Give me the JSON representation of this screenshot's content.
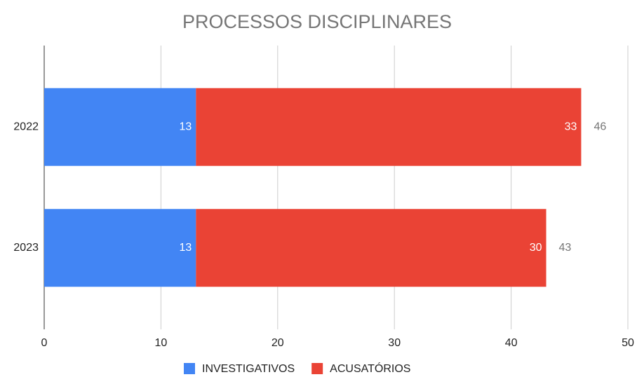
{
  "chart_data": {
    "type": "stacked_bar_horizontal",
    "title": "PROCESSOS DISCIPLINARES",
    "categories": [
      "2022",
      "2023"
    ],
    "series": [
      {
        "name": "INVESTIGATIVOS",
        "color": "#4285f4",
        "values": [
          13,
          13
        ]
      },
      {
        "name": "ACUSATÓRIOS",
        "color": "#ea4335",
        "values": [
          33,
          30
        ]
      }
    ],
    "totals": [
      46,
      43
    ],
    "xlim": [
      0,
      50
    ],
    "xticks": [
      0,
      10,
      20,
      30,
      40,
      50
    ],
    "grid": true,
    "legend": "bottom"
  }
}
